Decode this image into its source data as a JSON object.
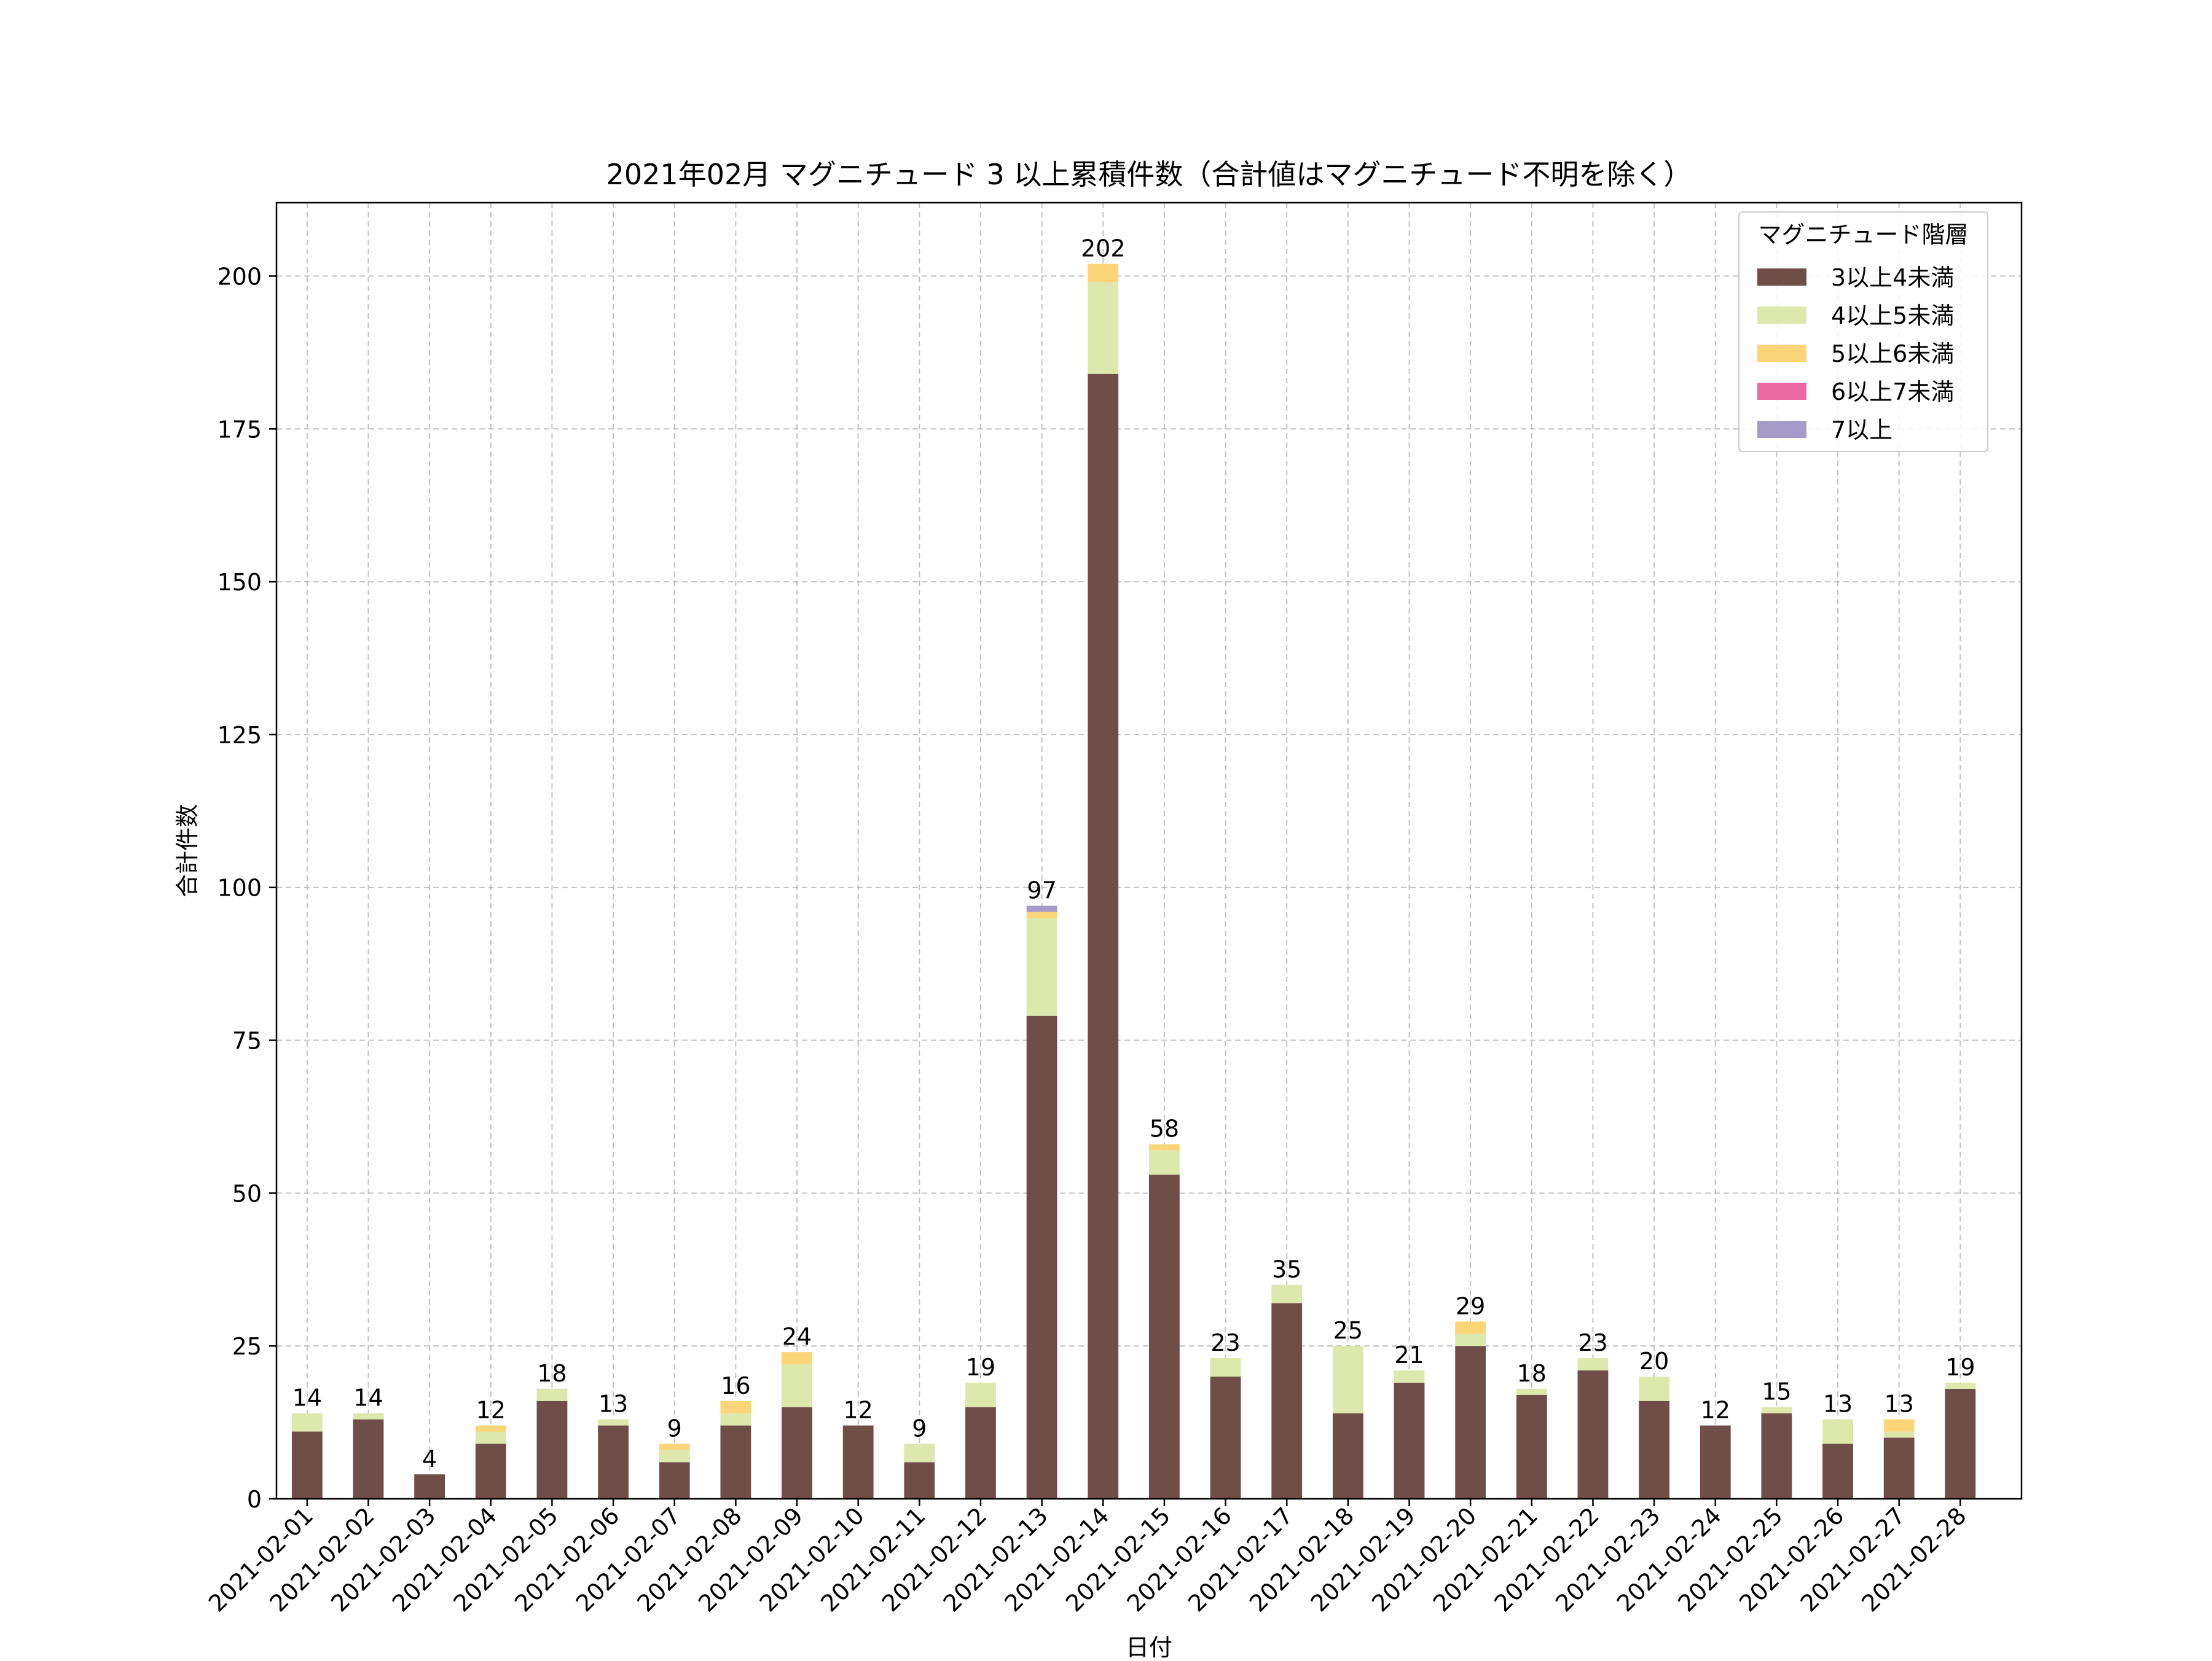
{
  "chart_data": {
    "type": "bar",
    "stacked": true,
    "title": "2021年02月 マグニチュード 3 以上累積件数（合計値はマグニチュード不明を除く）",
    "xlabel": "日付",
    "ylabel": "合計件数",
    "ylim": [
      0,
      212
    ],
    "yticks": [
      0,
      25,
      50,
      75,
      100,
      125,
      150,
      175,
      200
    ],
    "grid": true,
    "legend": {
      "title": "マグニチュード階層",
      "placement": "top-right"
    },
    "categories": [
      "2021-02-01",
      "2021-02-02",
      "2021-02-03",
      "2021-02-04",
      "2021-02-05",
      "2021-02-06",
      "2021-02-07",
      "2021-02-08",
      "2021-02-09",
      "2021-02-10",
      "2021-02-11",
      "2021-02-12",
      "2021-02-13",
      "2021-02-14",
      "2021-02-15",
      "2021-02-16",
      "2021-02-17",
      "2021-02-18",
      "2021-02-19",
      "2021-02-20",
      "2021-02-21",
      "2021-02-22",
      "2021-02-23",
      "2021-02-24",
      "2021-02-25",
      "2021-02-26",
      "2021-02-27",
      "2021-02-28"
    ],
    "series": [
      {
        "name": "3以上4未満",
        "color": "#6f4e48",
        "values": [
          11,
          13,
          4,
          9,
          16,
          12,
          6,
          12,
          15,
          12,
          6,
          15,
          79,
          184,
          53,
          20,
          32,
          14,
          19,
          25,
          17,
          21,
          16,
          12,
          14,
          9,
          10,
          18
        ]
      },
      {
        "name": "4以上5未満",
        "color": "#dce8ac",
        "values": [
          3,
          1,
          0,
          2,
          2,
          1,
          2,
          2,
          7,
          0,
          3,
          4,
          16,
          15,
          4,
          3,
          3,
          11,
          2,
          2,
          1,
          2,
          4,
          0,
          1,
          4,
          1,
          1
        ]
      },
      {
        "name": "5以上6未満",
        "color": "#fbd578",
        "values": [
          0,
          0,
          0,
          1,
          0,
          0,
          1,
          2,
          2,
          0,
          0,
          0,
          1,
          3,
          1,
          0,
          0,
          0,
          0,
          2,
          0,
          0,
          0,
          0,
          0,
          0,
          2,
          0
        ]
      },
      {
        "name": "6以上7未満",
        "color": "#e96aa1",
        "values": [
          0,
          0,
          0,
          0,
          0,
          0,
          0,
          0,
          0,
          0,
          0,
          0,
          0,
          0,
          0,
          0,
          0,
          0,
          0,
          0,
          0,
          0,
          0,
          0,
          0,
          0,
          0,
          0
        ]
      },
      {
        "name": "7以上",
        "color": "#a49bc8",
        "values": [
          0,
          0,
          0,
          0,
          0,
          0,
          0,
          0,
          0,
          0,
          0,
          0,
          1,
          0,
          0,
          0,
          0,
          0,
          0,
          0,
          0,
          0,
          0,
          0,
          0,
          0,
          0,
          0
        ]
      }
    ],
    "totals": [
      14,
      14,
      4,
      12,
      18,
      13,
      9,
      16,
      24,
      12,
      9,
      19,
      97,
      202,
      58,
      23,
      35,
      25,
      21,
      29,
      18,
      23,
      20,
      12,
      15,
      13,
      13,
      19
    ]
  }
}
